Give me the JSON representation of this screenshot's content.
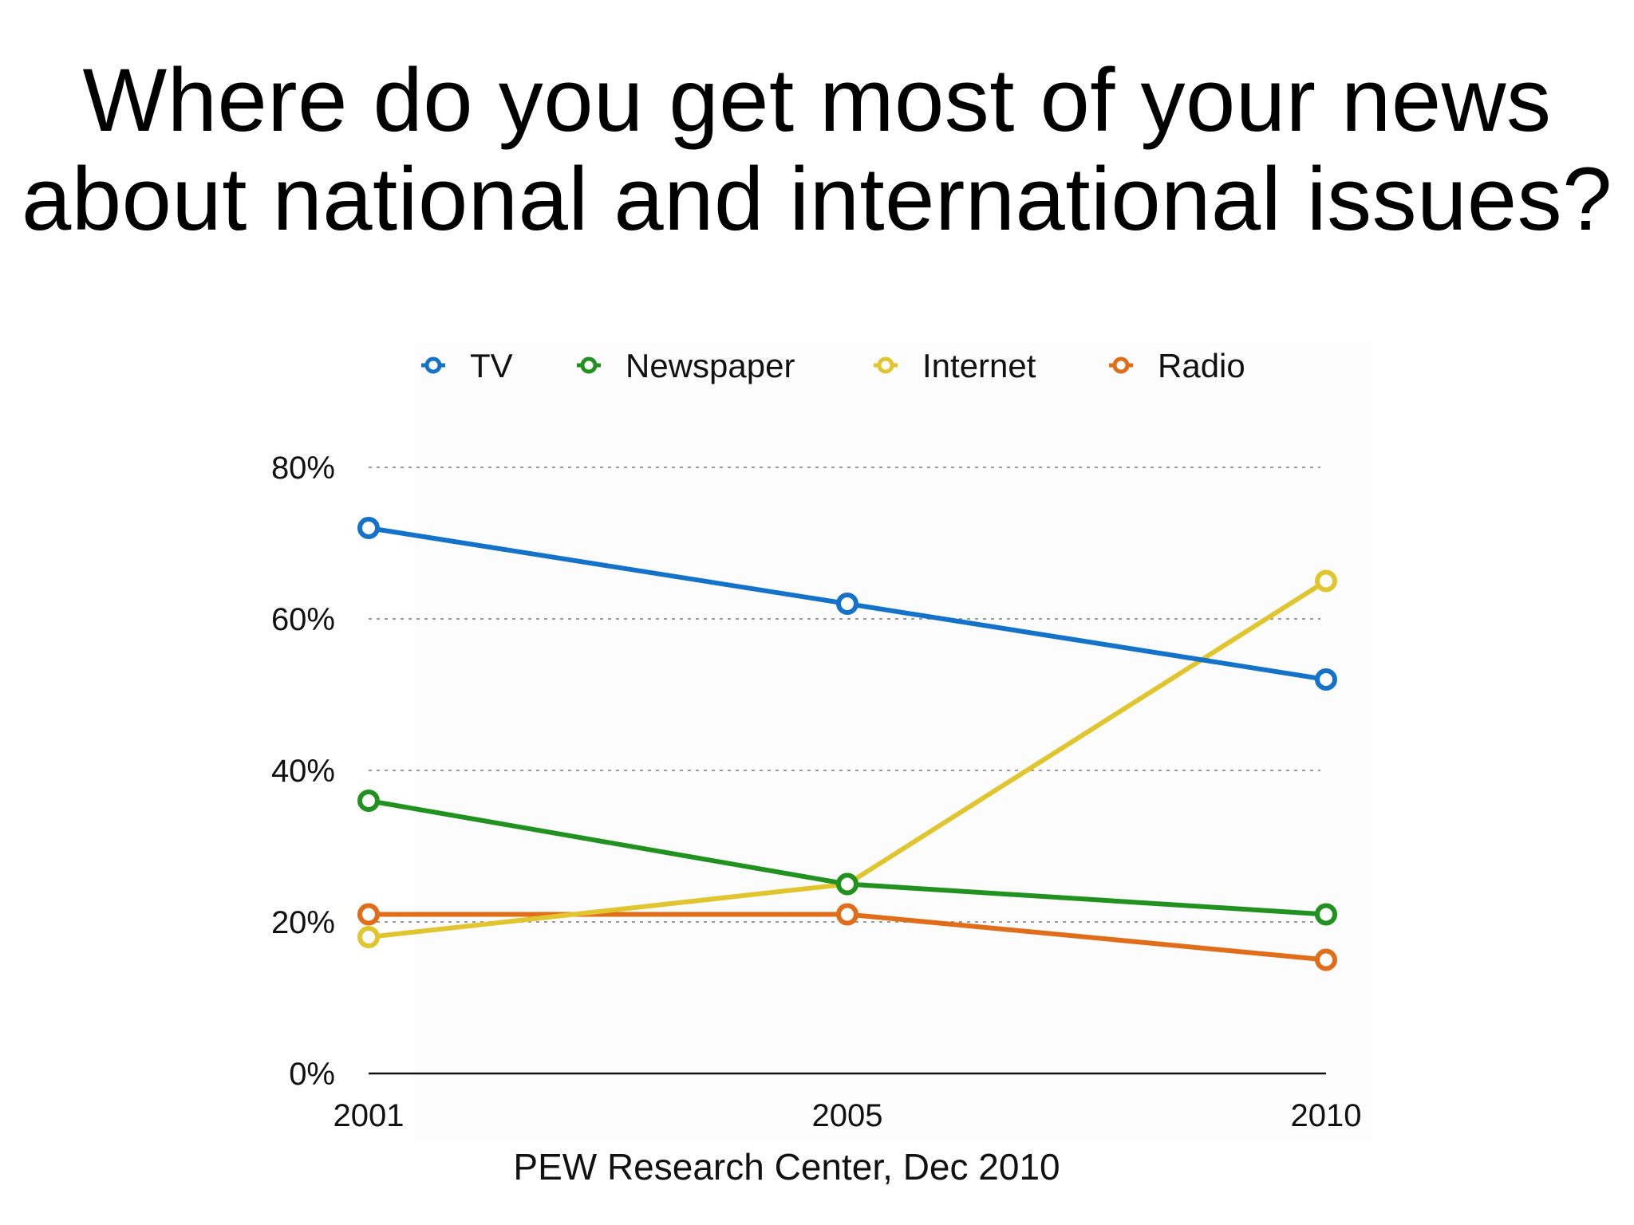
{
  "slide": {
    "title_line1": "Where do you get most of your news",
    "title_line2": "about national and international issues?"
  },
  "chart_data": {
    "type": "line",
    "x": [
      "2001",
      "2005",
      "2010"
    ],
    "series": [
      {
        "name": "TV",
        "color": "#1572c9",
        "values": [
          72,
          62,
          52
        ]
      },
      {
        "name": "Newspaper",
        "color": "#21911f",
        "values": [
          36,
          25,
          21
        ]
      },
      {
        "name": "Internet",
        "color": "#e0c52f",
        "values": [
          18,
          25,
          65
        ]
      },
      {
        "name": "Radio",
        "color": "#df6d19",
        "values": [
          21,
          21,
          15
        ]
      }
    ],
    "y_ticks": [
      {
        "value": 0,
        "label": "0%"
      },
      {
        "value": 20,
        "label": "20%"
      },
      {
        "value": 40,
        "label": "40%"
      },
      {
        "value": 60,
        "label": "60%"
      },
      {
        "value": 80,
        "label": "80%"
      }
    ],
    "ylim": [
      0,
      80
    ],
    "grid": true,
    "legend_position": "top",
    "source": "PEW Research Center, Dec 2010"
  }
}
